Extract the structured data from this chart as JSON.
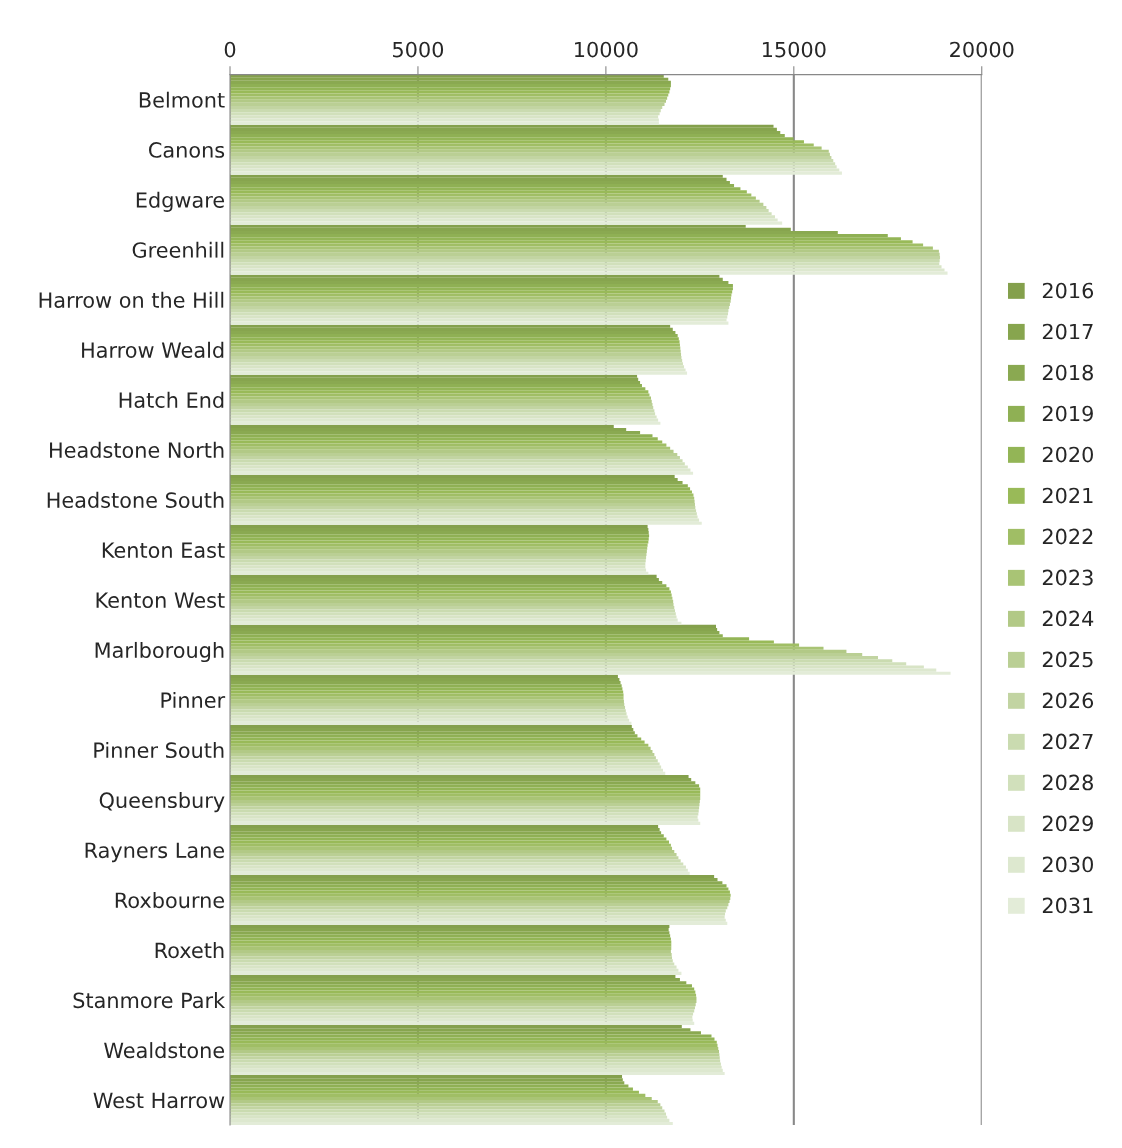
{
  "chart_data": {
    "type": "bar",
    "orientation": "horizontal",
    "categories": [
      "Belmont",
      "Canons",
      "Edgware",
      "Greenhill",
      "Harrow on the Hill",
      "Harrow Weald",
      "Hatch End",
      "Headstone North",
      "Headstone South",
      "Kenton East",
      "Kenton West",
      "Marlborough",
      "Pinner",
      "Pinner South",
      "Queensbury",
      "Rayners Lane",
      "Roxbourne",
      "Roxeth",
      "Stanmore Park",
      "Wealdstone",
      "West Harrow"
    ],
    "xlim": [
      0,
      20000
    ],
    "xticks": [
      0,
      5000,
      10000,
      15000,
      20000
    ],
    "grid": "x",
    "legend": "right",
    "series": [
      {
        "name": "2016",
        "color": "#84a04c",
        "values": [
          11540,
          14460,
          13110,
          13720,
          13020,
          11710,
          10830,
          10210,
          11830,
          11110,
          11350,
          12930,
          10320,
          10690,
          12200,
          11390,
          12880,
          11690,
          11850,
          12020,
          10430
        ]
      },
      {
        "name": "2017",
        "color": "#87a54e",
        "values": [
          11660,
          14550,
          13210,
          14920,
          13110,
          11780,
          10860,
          10540,
          11910,
          11130,
          11410,
          12960,
          10360,
          10730,
          12270,
          11430,
          12970,
          11670,
          11970,
          12250,
          10450
        ]
      },
      {
        "name": "2018",
        "color": "#8aa951",
        "values": [
          11730,
          14640,
          13300,
          16170,
          13260,
          11850,
          10910,
          10910,
          12040,
          11140,
          11500,
          13020,
          10390,
          10770,
          12380,
          11470,
          13100,
          11690,
          12140,
          12530,
          10490
        ]
      },
      {
        "name": "2019",
        "color": "#8fb054",
        "values": [
          11730,
          14760,
          13410,
          17500,
          13380,
          11910,
          10960,
          11240,
          12180,
          11150,
          11610,
          13110,
          10420,
          10840,
          12480,
          11540,
          13210,
          11710,
          12290,
          12810,
          10600
        ]
      },
      {
        "name": "2020",
        "color": "#93b556",
        "values": [
          11710,
          14990,
          13580,
          17850,
          13380,
          11940,
          11050,
          11380,
          12240,
          11140,
          11690,
          13810,
          10440,
          10940,
          12510,
          11610,
          13260,
          11730,
          12350,
          12890,
          10720
        ]
      },
      {
        "name": "2021",
        "color": "#99ba58",
        "values": [
          11690,
          15270,
          13750,
          18160,
          13360,
          11960,
          11130,
          11500,
          12290,
          11130,
          11730,
          14470,
          10460,
          11030,
          12510,
          11680,
          13300,
          11740,
          12380,
          12950,
          10880
        ]
      },
      {
        "name": "2022",
        "color": "#a0be65",
        "values": [
          11660,
          15530,
          13870,
          18440,
          13340,
          11970,
          11160,
          11610,
          12330,
          11110,
          11750,
          15140,
          10470,
          11130,
          12510,
          11730,
          13320,
          11740,
          12400,
          12970,
          11050
        ]
      },
      {
        "name": "2023",
        "color": "#a9c475",
        "values": [
          11630,
          15740,
          13990,
          18700,
          13330,
          11980,
          11200,
          11710,
          12350,
          11100,
          11770,
          15790,
          10470,
          11190,
          12510,
          11760,
          13310,
          11740,
          12410,
          12990,
          11220
        ]
      },
      {
        "name": "2024",
        "color": "#b2c986",
        "values": [
          11600,
          15930,
          14090,
          18860,
          13320,
          11990,
          11220,
          11800,
          12360,
          11090,
          11790,
          16400,
          10480,
          11240,
          12500,
          11820,
          13290,
          11730,
          12410,
          13010,
          11380
        ]
      },
      {
        "name": "2025",
        "color": "#bacf94",
        "values": [
          11560,
          15960,
          14190,
          18880,
          13300,
          12000,
          11240,
          11900,
          12370,
          11080,
          11800,
          16820,
          10490,
          11290,
          12490,
          11880,
          13260,
          11750,
          12390,
          13020,
          11450
        ]
      },
      {
        "name": "2026",
        "color": "#c2d4a2",
        "values": [
          11500,
          16000,
          14270,
          18890,
          13280,
          12010,
          11260,
          11970,
          12380,
          11070,
          11820,
          17240,
          10510,
          11330,
          12480,
          11930,
          13230,
          11760,
          12370,
          13030,
          11500
        ]
      },
      {
        "name": "2027",
        "color": "#cadbb0",
        "values": [
          11460,
          16050,
          14330,
          18880,
          13260,
          12030,
          11290,
          12040,
          12400,
          11060,
          11840,
          17620,
          10530,
          11380,
          12470,
          11990,
          13190,
          11780,
          12350,
          13040,
          11560
        ]
      },
      {
        "name": "2028",
        "color": "#d1e0bb",
        "values": [
          11430,
          16100,
          14410,
          18870,
          13250,
          12050,
          11310,
          12100,
          12420,
          11050,
          11860,
          17990,
          10550,
          11430,
          12460,
          12060,
          13170,
          11820,
          12320,
          13060,
          11600
        ]
      },
      {
        "name": "2029",
        "color": "#d8e4c6",
        "values": [
          11390,
          16140,
          14500,
          18930,
          13230,
          12080,
          11350,
          12180,
          12440,
          11050,
          11880,
          18460,
          10580,
          11470,
          12440,
          12130,
          13160,
          11880,
          12300,
          13080,
          11630
        ]
      },
      {
        "name": "2030",
        "color": "#dde8cf",
        "values": [
          11410,
          16210,
          14570,
          19010,
          13210,
          12120,
          11390,
          12250,
          12480,
          11070,
          11910,
          18790,
          10620,
          11520,
          12460,
          12180,
          13190,
          11930,
          12310,
          13110,
          11690
        ]
      },
      {
        "name": "2031",
        "color": "#e3ecd8",
        "values": [
          11410,
          16280,
          14690,
          19090,
          13260,
          12160,
          11450,
          12320,
          12550,
          11130,
          12010,
          19170,
          10680,
          11580,
          12510,
          12230,
          13230,
          12010,
          12350,
          13160,
          11780
        ]
      }
    ]
  }
}
